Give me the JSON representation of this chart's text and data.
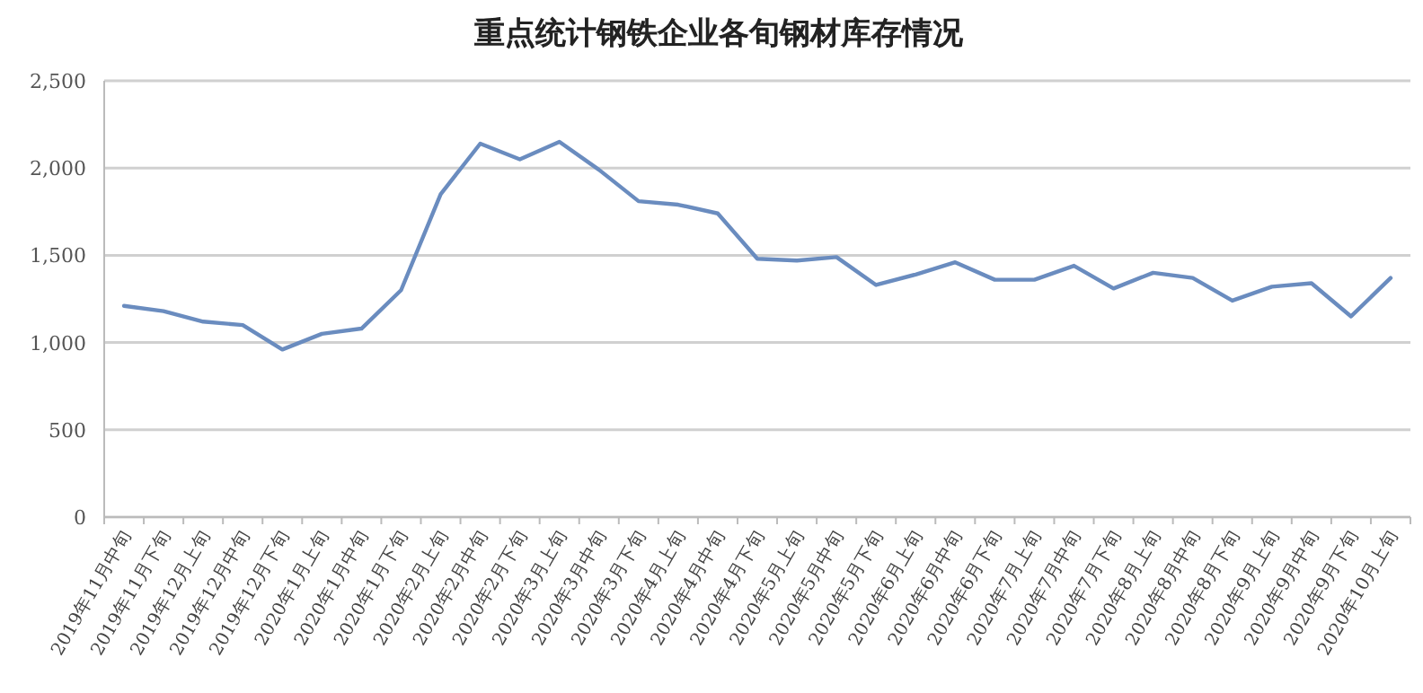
{
  "chart_data": {
    "type": "line",
    "title": "重点统计钢铁企业各旬钢材库存情况",
    "categories": [
      "2019年11月中旬",
      "2019年11月下旬",
      "2019年12月上旬",
      "2019年12月中旬",
      "2019年12月下旬",
      "2020年1月上旬",
      "2020年1月中旬",
      "2020年1月下旬",
      "2020年2月上旬",
      "2020年2月中旬",
      "2020年2月下旬",
      "2020年3月上旬",
      "2020年3月中旬",
      "2020年3月下旬",
      "2020年4月上旬",
      "2020年4月中旬",
      "2020年4月下旬",
      "2020年5月上旬",
      "2020年5月中旬",
      "2020年5月下旬",
      "2020年6月上旬",
      "2020年6月中旬",
      "2020年6月下旬",
      "2020年7月上旬",
      "2020年7月中旬",
      "2020年7月下旬",
      "2020年8月上旬",
      "2020年8月中旬",
      "2020年8月下旬",
      "2020年9月上旬",
      "2020年9月中旬",
      "2020年9月下旬",
      "2020年10月上旬"
    ],
    "series": [
      {
        "color": "#6a8cbf",
        "values": [
          1210,
          1180,
          1120,
          1100,
          960,
          1050,
          1080,
          1300,
          1850,
          2140,
          2050,
          2150,
          1990,
          1810,
          1790,
          1740,
          1480,
          1470,
          1490,
          1330,
          1390,
          1460,
          1360,
          1360,
          1440,
          1310,
          1400,
          1370,
          1240,
          1320,
          1340,
          1150,
          1370
        ]
      }
    ],
    "ylim": [
      0,
      2500
    ],
    "yticks": [
      {
        "value": 0,
        "label": "0"
      },
      {
        "value": 500,
        "label": "500"
      },
      {
        "value": 1000,
        "label": "1,000"
      },
      {
        "value": 1500,
        "label": "1,500"
      },
      {
        "value": 2000,
        "label": "2,000"
      },
      {
        "value": 2500,
        "label": "2,500"
      }
    ],
    "grid": "y",
    "marker": "none",
    "line_style": "solid"
  }
}
